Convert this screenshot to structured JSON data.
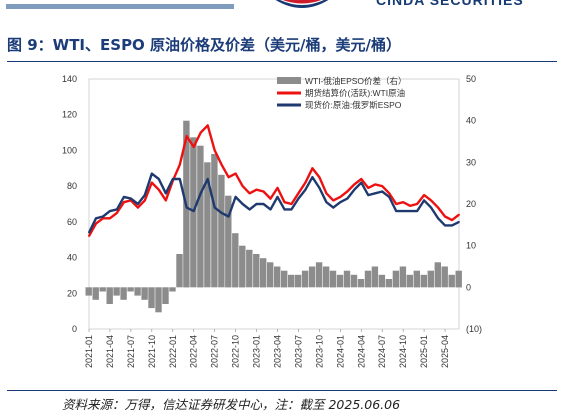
{
  "header": {
    "brand": "CINDA SECURITIES",
    "figure_title": "图 9：WTI、ESPO 原油价格及价差（美元/桶，美元/桶）"
  },
  "source": "资料来源：万得，信达证券研发中心，注：截至 2025.06.06",
  "colors": {
    "accent": "#1b3c78",
    "wti": "#ee1111",
    "espo": "#1f3a6e",
    "spread": "#8c8c8c"
  },
  "chart_data": {
    "type": "line",
    "title": "图 9：WTI、ESPO 原油价格及价差（美元/桶，美元/桶）",
    "x_ticks": [
      "2021-01",
      "2021-04",
      "2021-07",
      "2021-10",
      "2022-01",
      "2022-04",
      "2022-07",
      "2022-10",
      "2023-01",
      "2023-04",
      "2023-07",
      "2023-10",
      "2024-01",
      "2024-04",
      "2024-07",
      "2024-10",
      "2025-01",
      "2025-04"
    ],
    "left_axis": {
      "ylim": [
        0,
        140
      ],
      "ticks": [
        "0",
        "20",
        "40",
        "60",
        "80",
        "100",
        "120",
        "140"
      ]
    },
    "right_axis": {
      "ylim": [
        -10,
        50
      ],
      "ticks": [
        "(10)",
        "0",
        "10",
        "20",
        "30",
        "40",
        "50"
      ],
      "negative_tick_color": "#ee1111"
    },
    "legend_position": "top-right",
    "series": [
      {
        "name": "WTI-俄油EPSO价差（右）",
        "type": "area",
        "axis": "right",
        "x": [
          "2021-01",
          "2021-02",
          "2021-03",
          "2021-04",
          "2021-05",
          "2021-06",
          "2021-07",
          "2021-08",
          "2021-09",
          "2021-10",
          "2021-11",
          "2021-12",
          "2022-01",
          "2022-02",
          "2022-03",
          "2022-04",
          "2022-05",
          "2022-06",
          "2022-07",
          "2022-08",
          "2022-09",
          "2022-10",
          "2022-11",
          "2022-12",
          "2023-01",
          "2023-02",
          "2023-03",
          "2023-04",
          "2023-05",
          "2023-06",
          "2023-07",
          "2023-08",
          "2023-09",
          "2023-10",
          "2023-11",
          "2023-12",
          "2024-01",
          "2024-02",
          "2024-03",
          "2024-04",
          "2024-05",
          "2024-06",
          "2024-07",
          "2024-08",
          "2024-09",
          "2024-10",
          "2024-11",
          "2024-12",
          "2025-01",
          "2025-02",
          "2025-03",
          "2025-04",
          "2025-05",
          "2025-06"
        ],
        "values": [
          -2,
          -3,
          -1,
          -4,
          -2,
          -3,
          -1,
          -2,
          -3,
          -5,
          -6,
          -4,
          -1,
          8,
          40,
          36,
          34,
          30,
          32,
          27,
          22,
          13,
          10,
          9,
          8,
          7,
          6,
          5,
          4,
          3,
          3,
          4,
          5,
          6,
          5,
          4,
          3,
          4,
          3,
          2,
          4,
          5,
          3,
          2,
          4,
          5,
          3,
          4,
          3,
          4,
          6,
          5,
          3,
          4
        ]
      },
      {
        "name": "期货结算价(活跃):WTI原油",
        "type": "line",
        "axis": "left",
        "x": [
          "2021-01",
          "2021-02",
          "2021-03",
          "2021-04",
          "2021-05",
          "2021-06",
          "2021-07",
          "2021-08",
          "2021-09",
          "2021-10",
          "2021-11",
          "2021-12",
          "2022-01",
          "2022-02",
          "2022-03",
          "2022-04",
          "2022-05",
          "2022-06",
          "2022-07",
          "2022-08",
          "2022-09",
          "2022-10",
          "2022-11",
          "2022-12",
          "2023-01",
          "2023-02",
          "2023-03",
          "2023-04",
          "2023-05",
          "2023-06",
          "2023-07",
          "2023-08",
          "2023-09",
          "2023-10",
          "2023-11",
          "2023-12",
          "2024-01",
          "2024-02",
          "2024-03",
          "2024-04",
          "2024-05",
          "2024-06",
          "2024-07",
          "2024-08",
          "2024-09",
          "2024-10",
          "2024-11",
          "2024-12",
          "2025-01",
          "2025-02",
          "2025-03",
          "2025-04",
          "2025-05",
          "2025-06"
        ],
        "values": [
          52,
          59,
          62,
          62,
          65,
          71,
          72,
          68,
          72,
          82,
          78,
          72,
          83,
          92,
          108,
          102,
          110,
          114,
          100,
          92,
          85,
          87,
          80,
          76,
          78,
          77,
          73,
          79,
          71,
          70,
          76,
          82,
          90,
          85,
          76,
          72,
          74,
          77,
          81,
          84,
          79,
          81,
          80,
          76,
          70,
          71,
          69,
          70,
          75,
          72,
          68,
          63,
          61,
          64
        ]
      },
      {
        "name": "现货价:原油:俄罗斯ESPO",
        "type": "line",
        "axis": "left",
        "x": [
          "2021-01",
          "2021-02",
          "2021-03",
          "2021-04",
          "2021-05",
          "2021-06",
          "2021-07",
          "2021-08",
          "2021-09",
          "2021-10",
          "2021-11",
          "2021-12",
          "2022-01",
          "2022-02",
          "2022-03",
          "2022-04",
          "2022-05",
          "2022-06",
          "2022-07",
          "2022-08",
          "2022-09",
          "2022-10",
          "2022-11",
          "2022-12",
          "2023-01",
          "2023-02",
          "2023-03",
          "2023-04",
          "2023-05",
          "2023-06",
          "2023-07",
          "2023-08",
          "2023-09",
          "2023-10",
          "2023-11",
          "2023-12",
          "2024-01",
          "2024-02",
          "2024-03",
          "2024-04",
          "2024-05",
          "2024-06",
          "2024-07",
          "2024-08",
          "2024-09",
          "2024-10",
          "2024-11",
          "2024-12",
          "2025-01",
          "2025-02",
          "2025-03",
          "2025-04",
          "2025-05",
          "2025-06"
        ],
        "values": [
          54,
          62,
          63,
          66,
          67,
          74,
          73,
          70,
          75,
          87,
          84,
          76,
          84,
          84,
          68,
          66,
          76,
          84,
          68,
          65,
          63,
          74,
          70,
          67,
          70,
          70,
          67,
          74,
          67,
          67,
          73,
          78,
          85,
          79,
          71,
          68,
          71,
          73,
          78,
          82,
          75,
          76,
          77,
          74,
          66,
          66,
          66,
          66,
          72,
          68,
          62,
          58,
          58,
          60
        ]
      }
    ]
  }
}
